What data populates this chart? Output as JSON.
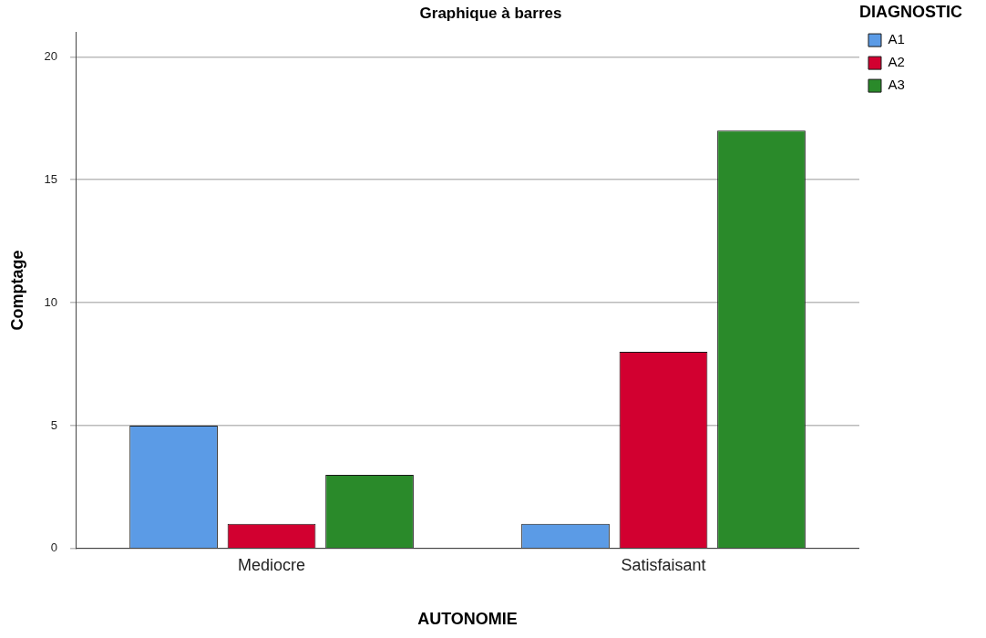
{
  "chart_data": {
    "type": "bar",
    "title": "Graphique à barres",
    "xlabel": "AUTONOMIE",
    "ylabel": "Comptage",
    "legend_title": "DIAGNOSTIC",
    "categories": [
      "Mediocre",
      "Satisfaisant"
    ],
    "series": [
      {
        "name": "A1",
        "color": "#5b9be6",
        "values": [
          5,
          1
        ]
      },
      {
        "name": "A2",
        "color": "#d20030",
        "values": [
          1,
          8
        ]
      },
      {
        "name": "A3",
        "color": "#2a8a2a",
        "values": [
          3,
          17
        ]
      }
    ],
    "ylim": [
      0,
      21
    ],
    "yticks": [
      0,
      5,
      10,
      15,
      20
    ],
    "grid": "y",
    "legend": "top right"
  }
}
